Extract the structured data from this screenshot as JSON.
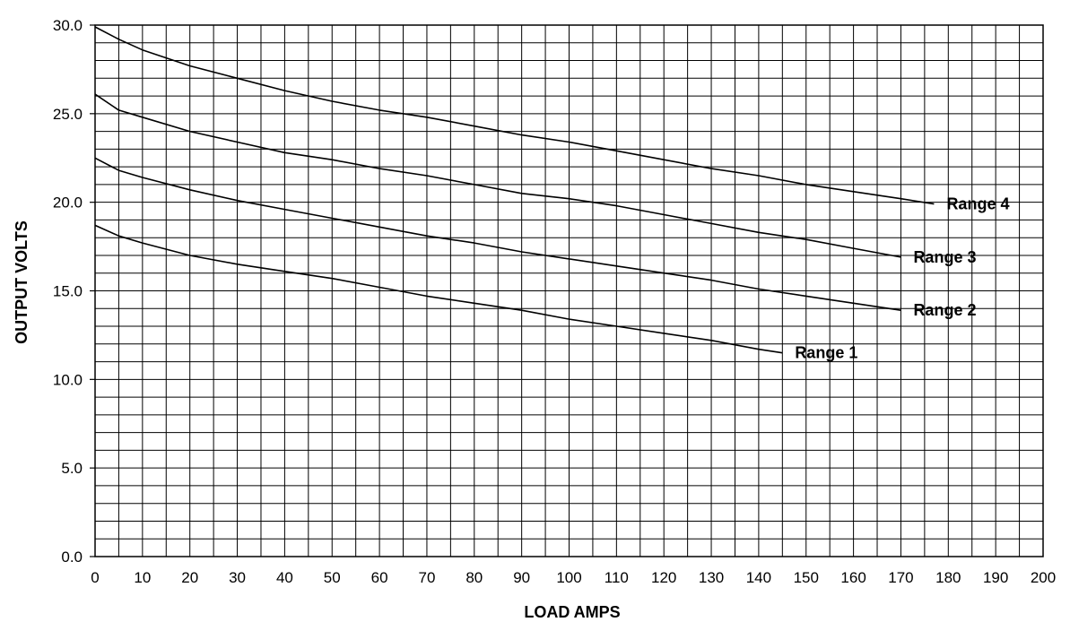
{
  "chart_data": {
    "type": "line",
    "title": "",
    "xlabel": "LOAD AMPS",
    "ylabel": "OUTPUT VOLTS",
    "xlim": [
      0,
      200
    ],
    "ylim": [
      0,
      30
    ],
    "x_ticks": [
      0,
      10,
      20,
      30,
      40,
      50,
      60,
      70,
      80,
      90,
      100,
      110,
      120,
      130,
      140,
      150,
      160,
      170,
      180,
      190,
      200
    ],
    "x_tick_labels": [
      "0",
      "10",
      "20",
      "30",
      "40",
      "50",
      "60",
      "70",
      "80",
      "90",
      "100",
      "110",
      "120",
      "130",
      "140",
      "150",
      "160",
      "170",
      "180",
      "190",
      "200"
    ],
    "y_ticks": [
      0,
      5,
      10,
      15,
      20,
      25,
      30
    ],
    "y_tick_labels": [
      "0.0",
      "5.0",
      "10.0",
      "15.0",
      "20.0",
      "25.0",
      "30.0"
    ],
    "grid": true,
    "grid_x_minor": 5,
    "grid_y_minor": 1,
    "legend": "inline labels at line ends",
    "series": [
      {
        "name": "Range 1",
        "x": [
          0,
          5,
          10,
          20,
          30,
          40,
          50,
          60,
          70,
          80,
          90,
          100,
          110,
          120,
          130,
          140,
          145
        ],
        "y": [
          18.7,
          18.1,
          17.7,
          17.0,
          16.5,
          16.1,
          15.7,
          15.2,
          14.7,
          14.3,
          13.9,
          13.4,
          13.0,
          12.6,
          12.2,
          11.7,
          11.5
        ]
      },
      {
        "name": "Range 2",
        "x": [
          0,
          5,
          10,
          20,
          30,
          40,
          50,
          60,
          70,
          80,
          90,
          100,
          110,
          120,
          130,
          140,
          150,
          160,
          170
        ],
        "y": [
          22.5,
          21.8,
          21.4,
          20.7,
          20.1,
          19.6,
          19.1,
          18.6,
          18.1,
          17.7,
          17.2,
          16.8,
          16.4,
          16.0,
          15.6,
          15.1,
          14.7,
          14.3,
          13.9
        ]
      },
      {
        "name": "Range 3",
        "x": [
          0,
          5,
          10,
          20,
          30,
          40,
          50,
          60,
          70,
          80,
          90,
          100,
          110,
          120,
          130,
          140,
          150,
          160,
          170
        ],
        "y": [
          26.1,
          25.2,
          24.8,
          24.0,
          23.4,
          22.8,
          22.4,
          21.9,
          21.5,
          21.0,
          20.5,
          20.2,
          19.8,
          19.3,
          18.8,
          18.3,
          17.9,
          17.4,
          16.9
        ]
      },
      {
        "name": "Range 4",
        "x": [
          0,
          5,
          10,
          20,
          30,
          40,
          50,
          60,
          70,
          80,
          90,
          100,
          110,
          120,
          130,
          140,
          150,
          160,
          170,
          177
        ],
        "y": [
          29.9,
          29.2,
          28.6,
          27.7,
          27.0,
          26.3,
          25.7,
          25.2,
          24.8,
          24.3,
          23.8,
          23.4,
          22.9,
          22.4,
          21.9,
          21.5,
          21.0,
          20.6,
          20.2,
          19.9
        ]
      }
    ]
  }
}
